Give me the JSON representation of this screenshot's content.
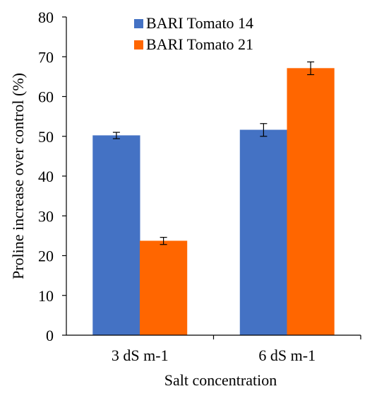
{
  "chart_data": {
    "type": "bar",
    "title": "",
    "xlabel": "Salt concentration",
    "ylabel": "Proline increase over control  (%)",
    "ylim": [
      0,
      80
    ],
    "yticks": [
      0,
      10,
      20,
      30,
      40,
      50,
      60,
      70,
      80
    ],
    "grid": false,
    "legend_position": "top-left",
    "categories": [
      "3 dS m-1",
      "6 dS m-1"
    ],
    "series": [
      {
        "name": "BARI Tomato 14",
        "color": "#4472C4",
        "values": [
          50.2,
          51.6
        ],
        "errors": [
          0.8,
          1.6
        ]
      },
      {
        "name": "BARI Tomato 21",
        "color": "#FF6600",
        "values": [
          23.7,
          67.1
        ],
        "errors": [
          0.9,
          1.6
        ]
      }
    ]
  }
}
